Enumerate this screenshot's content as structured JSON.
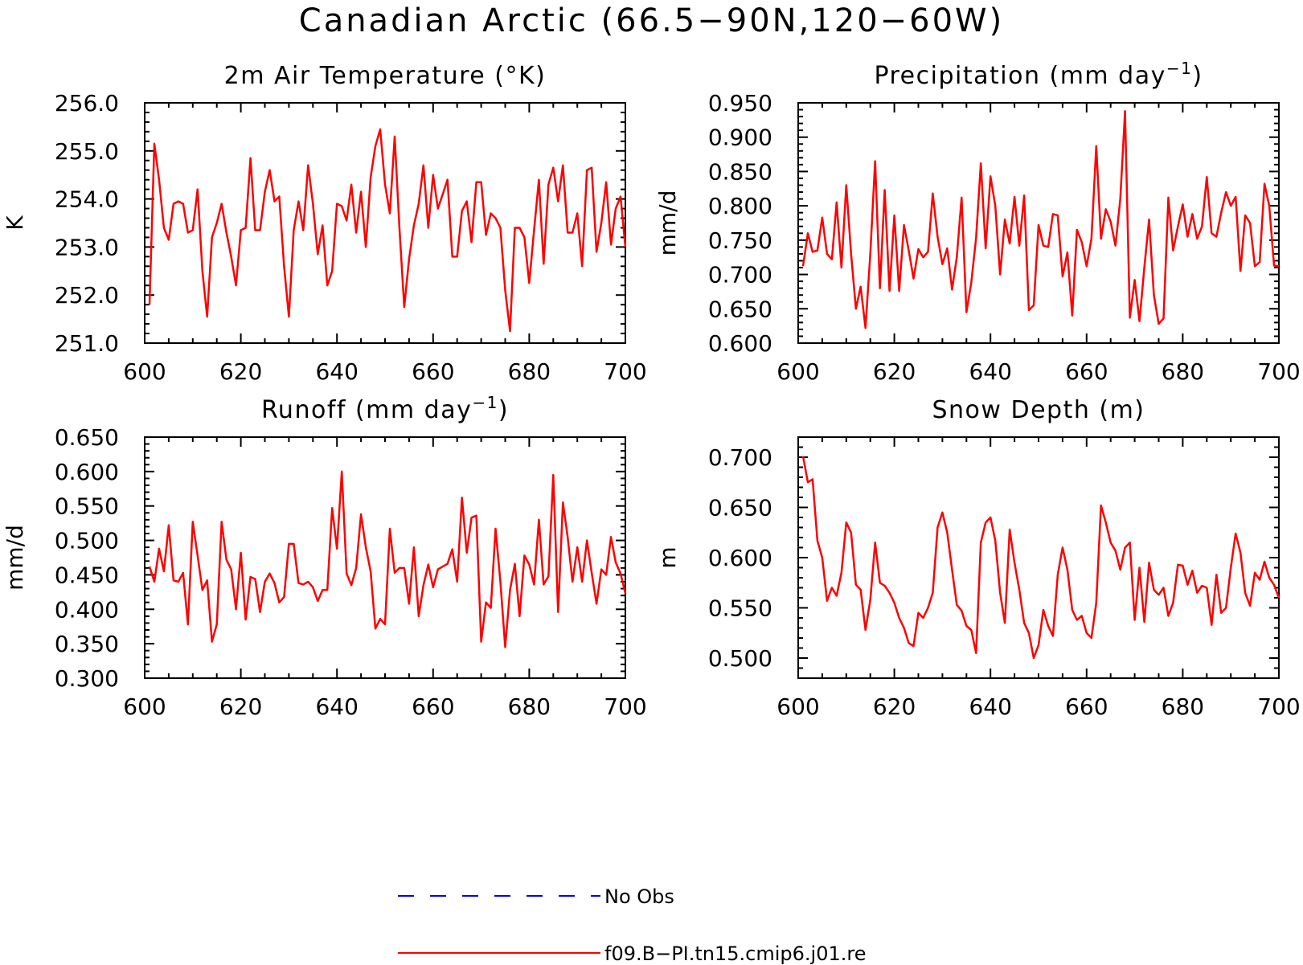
{
  "title": "Canadian Arctic (66.5−90N,120−60W)",
  "colors": {
    "model": "#ff0000",
    "obs": "#0000ff",
    "axis": "#000000"
  },
  "legend": [
    {
      "label": "No Obs",
      "style": "dashed",
      "color": "#0000ff"
    },
    {
      "label": "f09.B−PI.tn15.cmip6.j01.re",
      "style": "solid",
      "color": "#ff0000"
    }
  ],
  "chart_data": [
    {
      "type": "line",
      "title": "2m Air Temperature (°K)",
      "ylabel": "K",
      "xlim": [
        600,
        700
      ],
      "ylim": [
        251.0,
        256.0
      ],
      "xticks": [
        "600",
        "620",
        "640",
        "660",
        "680",
        "700"
      ],
      "yticks": [
        "251.0",
        "252.0",
        "253.0",
        "254.0",
        "255.0",
        "256.0"
      ],
      "x_start": 601,
      "series": [
        {
          "values": [
            251.8,
            255.15,
            254.4,
            253.4,
            253.15,
            253.9,
            253.95,
            253.9,
            253.3,
            253.35,
            254.2,
            252.5,
            251.55,
            253.2,
            253.5,
            253.9,
            253.3,
            252.8,
            252.2,
            253.35,
            253.4,
            254.85,
            253.35,
            253.35,
            254.15,
            254.6,
            253.95,
            254.05,
            252.6,
            251.55,
            253.35,
            253.95,
            253.35,
            254.7,
            253.9,
            252.85,
            253.45,
            252.2,
            252.5,
            253.9,
            253.85,
            253.55,
            254.3,
            253.3,
            254.15,
            253.0,
            254.45,
            255.1,
            255.45,
            254.3,
            253.7,
            255.3,
            253.4,
            251.75,
            252.75,
            253.45,
            253.9,
            254.7,
            253.4,
            254.5,
            253.8,
            254.1,
            254.4,
            252.8,
            252.8,
            253.75,
            253.95,
            253.1,
            254.35,
            254.35,
            253.25,
            253.7,
            253.6,
            253.4,
            252.1,
            251.25,
            253.4,
            253.4,
            253.2,
            252.25,
            253.35,
            254.4,
            252.65,
            254.3,
            254.65,
            253.95,
            254.7,
            253.3,
            253.3,
            253.7,
            252.6,
            254.6,
            254.65,
            252.9,
            253.5,
            254.35,
            253.05,
            253.8,
            254.05,
            253.0
          ]
        }
      ]
    },
    {
      "type": "line",
      "title": "Precipitation (mm day",
      "title_sup": "−1",
      "title_end": ")",
      "ylabel": "mm/d",
      "xlim": [
        600,
        700
      ],
      "ylim": [
        0.6,
        0.95
      ],
      "xticks": [
        "600",
        "620",
        "640",
        "660",
        "680",
        "700"
      ],
      "yticks": [
        "0.600",
        "0.650",
        "0.700",
        "0.750",
        "0.800",
        "0.850",
        "0.900",
        "0.950"
      ],
      "x_start": 601,
      "series": [
        {
          "values": [
            0.712,
            0.76,
            0.733,
            0.735,
            0.783,
            0.73,
            0.722,
            0.805,
            0.71,
            0.83,
            0.73,
            0.65,
            0.682,
            0.622,
            0.73,
            0.865,
            0.68,
            0.823,
            0.676,
            0.786,
            0.676,
            0.772,
            0.735,
            0.694,
            0.737,
            0.725,
            0.733,
            0.818,
            0.755,
            0.715,
            0.738,
            0.678,
            0.725,
            0.812,
            0.645,
            0.688,
            0.753,
            0.862,
            0.738,
            0.843,
            0.8,
            0.7,
            0.78,
            0.745,
            0.813,
            0.742,
            0.815,
            0.648,
            0.655,
            0.772,
            0.742,
            0.74,
            0.788,
            0.786,
            0.697,
            0.732,
            0.64,
            0.765,
            0.747,
            0.712,
            0.752,
            0.887,
            0.752,
            0.795,
            0.777,
            0.742,
            0.81,
            0.938,
            0.637,
            0.692,
            0.632,
            0.71,
            0.78,
            0.67,
            0.628,
            0.636,
            0.812,
            0.735,
            0.77,
            0.802,
            0.755,
            0.788,
            0.752,
            0.77,
            0.842,
            0.76,
            0.755,
            0.79,
            0.82,
            0.8,
            0.813,
            0.705,
            0.786,
            0.775,
            0.712,
            0.718,
            0.832,
            0.8,
            0.713,
            0.712
          ]
        }
      ]
    },
    {
      "type": "line",
      "title": "Runoff (mm day",
      "title_sup": "−1",
      "title_end": ")",
      "ylabel": "mm/d",
      "xlim": [
        600,
        700
      ],
      "ylim": [
        0.3,
        0.65
      ],
      "xticks": [
        "600",
        "620",
        "640",
        "660",
        "680",
        "700"
      ],
      "yticks": [
        "0.300",
        "0.350",
        "0.400",
        "0.450",
        "0.500",
        "0.550",
        "0.600",
        "0.650"
      ],
      "x_start": 601,
      "series": [
        {
          "values": [
            0.462,
            0.44,
            0.488,
            0.455,
            0.522,
            0.442,
            0.44,
            0.453,
            0.378,
            0.527,
            0.478,
            0.428,
            0.442,
            0.353,
            0.378,
            0.527,
            0.472,
            0.458,
            0.4,
            0.482,
            0.385,
            0.447,
            0.444,
            0.396,
            0.44,
            0.452,
            0.438,
            0.41,
            0.418,
            0.495,
            0.495,
            0.438,
            0.436,
            0.44,
            0.432,
            0.412,
            0.428,
            0.428,
            0.547,
            0.488,
            0.6,
            0.452,
            0.435,
            0.46,
            0.538,
            0.49,
            0.455,
            0.372,
            0.386,
            0.378,
            0.517,
            0.453,
            0.46,
            0.46,
            0.408,
            0.49,
            0.39,
            0.435,
            0.465,
            0.432,
            0.458,
            0.462,
            0.466,
            0.487,
            0.44,
            0.562,
            0.482,
            0.533,
            0.536,
            0.353,
            0.41,
            0.402,
            0.517,
            0.44,
            0.345,
            0.428,
            0.466,
            0.39,
            0.478,
            0.465,
            0.436,
            0.53,
            0.436,
            0.448,
            0.595,
            0.396,
            0.555,
            0.505,
            0.44,
            0.49,
            0.44,
            0.5,
            0.453,
            0.408,
            0.458,
            0.45,
            0.505,
            0.468,
            0.452,
            0.423
          ]
        }
      ]
    },
    {
      "type": "line",
      "title": "Snow Depth (m)",
      "ylabel": "m",
      "xlim": [
        600,
        700
      ],
      "ylim": [
        0.48,
        0.72
      ],
      "xticks": [
        "600",
        "620",
        "640",
        "660",
        "680",
        "700"
      ],
      "yticks": [
        "0.500",
        "0.550",
        "0.600",
        "0.650",
        "0.700"
      ],
      "x_start": 601,
      "series": [
        {
          "values": [
            0.701,
            0.675,
            0.678,
            0.617,
            0.6,
            0.557,
            0.57,
            0.562,
            0.585,
            0.635,
            0.625,
            0.573,
            0.568,
            0.528,
            0.558,
            0.615,
            0.575,
            0.572,
            0.565,
            0.555,
            0.54,
            0.53,
            0.515,
            0.512,
            0.545,
            0.54,
            0.55,
            0.565,
            0.63,
            0.645,
            0.625,
            0.588,
            0.553,
            0.547,
            0.532,
            0.528,
            0.505,
            0.615,
            0.635,
            0.64,
            0.617,
            0.565,
            0.535,
            0.628,
            0.595,
            0.568,
            0.535,
            0.525,
            0.5,
            0.513,
            0.548,
            0.532,
            0.522,
            0.583,
            0.61,
            0.588,
            0.548,
            0.538,
            0.542,
            0.525,
            0.52,
            0.555,
            0.652,
            0.635,
            0.615,
            0.607,
            0.588,
            0.61,
            0.615,
            0.538,
            0.59,
            0.536,
            0.595,
            0.568,
            0.563,
            0.57,
            0.542,
            0.555,
            0.593,
            0.592,
            0.573,
            0.587,
            0.565,
            0.572,
            0.57,
            0.533,
            0.583,
            0.545,
            0.55,
            0.59,
            0.624,
            0.605,
            0.565,
            0.552,
            0.585,
            0.578,
            0.596,
            0.58,
            0.573,
            0.56
          ]
        }
      ]
    }
  ]
}
